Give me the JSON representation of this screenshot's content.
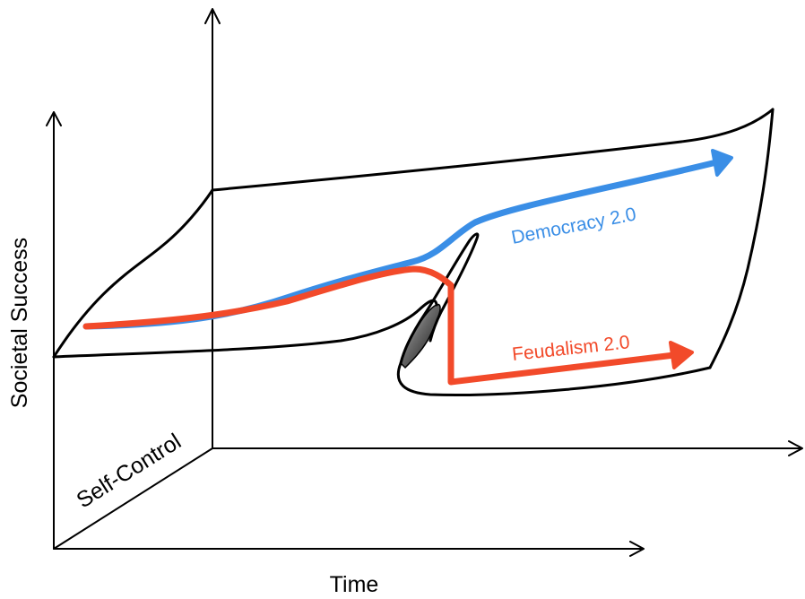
{
  "axes": {
    "vertical_label": "Societal Success",
    "horizontal_label": "Time",
    "depth_label": "Self-Control"
  },
  "paths": [
    {
      "id": "democracy",
      "label": "Democracy 2.0",
      "color": "#3a8ee6"
    },
    {
      "id": "feudalism",
      "label": "Feudalism 2.0",
      "color": "#f24a2a"
    }
  ],
  "colors": {
    "axis": "#000000",
    "surface_outline": "#000000",
    "fold_shading": "#555555",
    "background": "#ffffff"
  }
}
